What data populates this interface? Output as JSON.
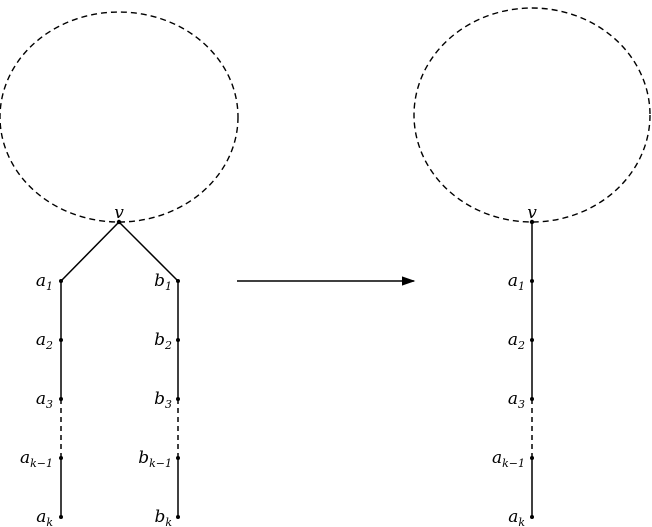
{
  "left": {
    "top_node": "v",
    "chain_a": [
      {
        "base": "a",
        "sub": "1"
      },
      {
        "base": "a",
        "sub": "2"
      },
      {
        "base": "a",
        "sub": "3"
      },
      {
        "base": "a",
        "sub": "k−1"
      },
      {
        "base": "a",
        "sub": "k"
      }
    ],
    "chain_b": [
      {
        "base": "b",
        "sub": "1"
      },
      {
        "base": "b",
        "sub": "2"
      },
      {
        "base": "b",
        "sub": "3"
      },
      {
        "base": "b",
        "sub": "k−1"
      },
      {
        "base": "b",
        "sub": "k"
      }
    ]
  },
  "right": {
    "top_node": "v",
    "chain_a": [
      {
        "base": "a",
        "sub": "1"
      },
      {
        "base": "a",
        "sub": "2"
      },
      {
        "base": "a",
        "sub": "3"
      },
      {
        "base": "a",
        "sub": "k−1"
      },
      {
        "base": "a",
        "sub": "k"
      }
    ]
  }
}
